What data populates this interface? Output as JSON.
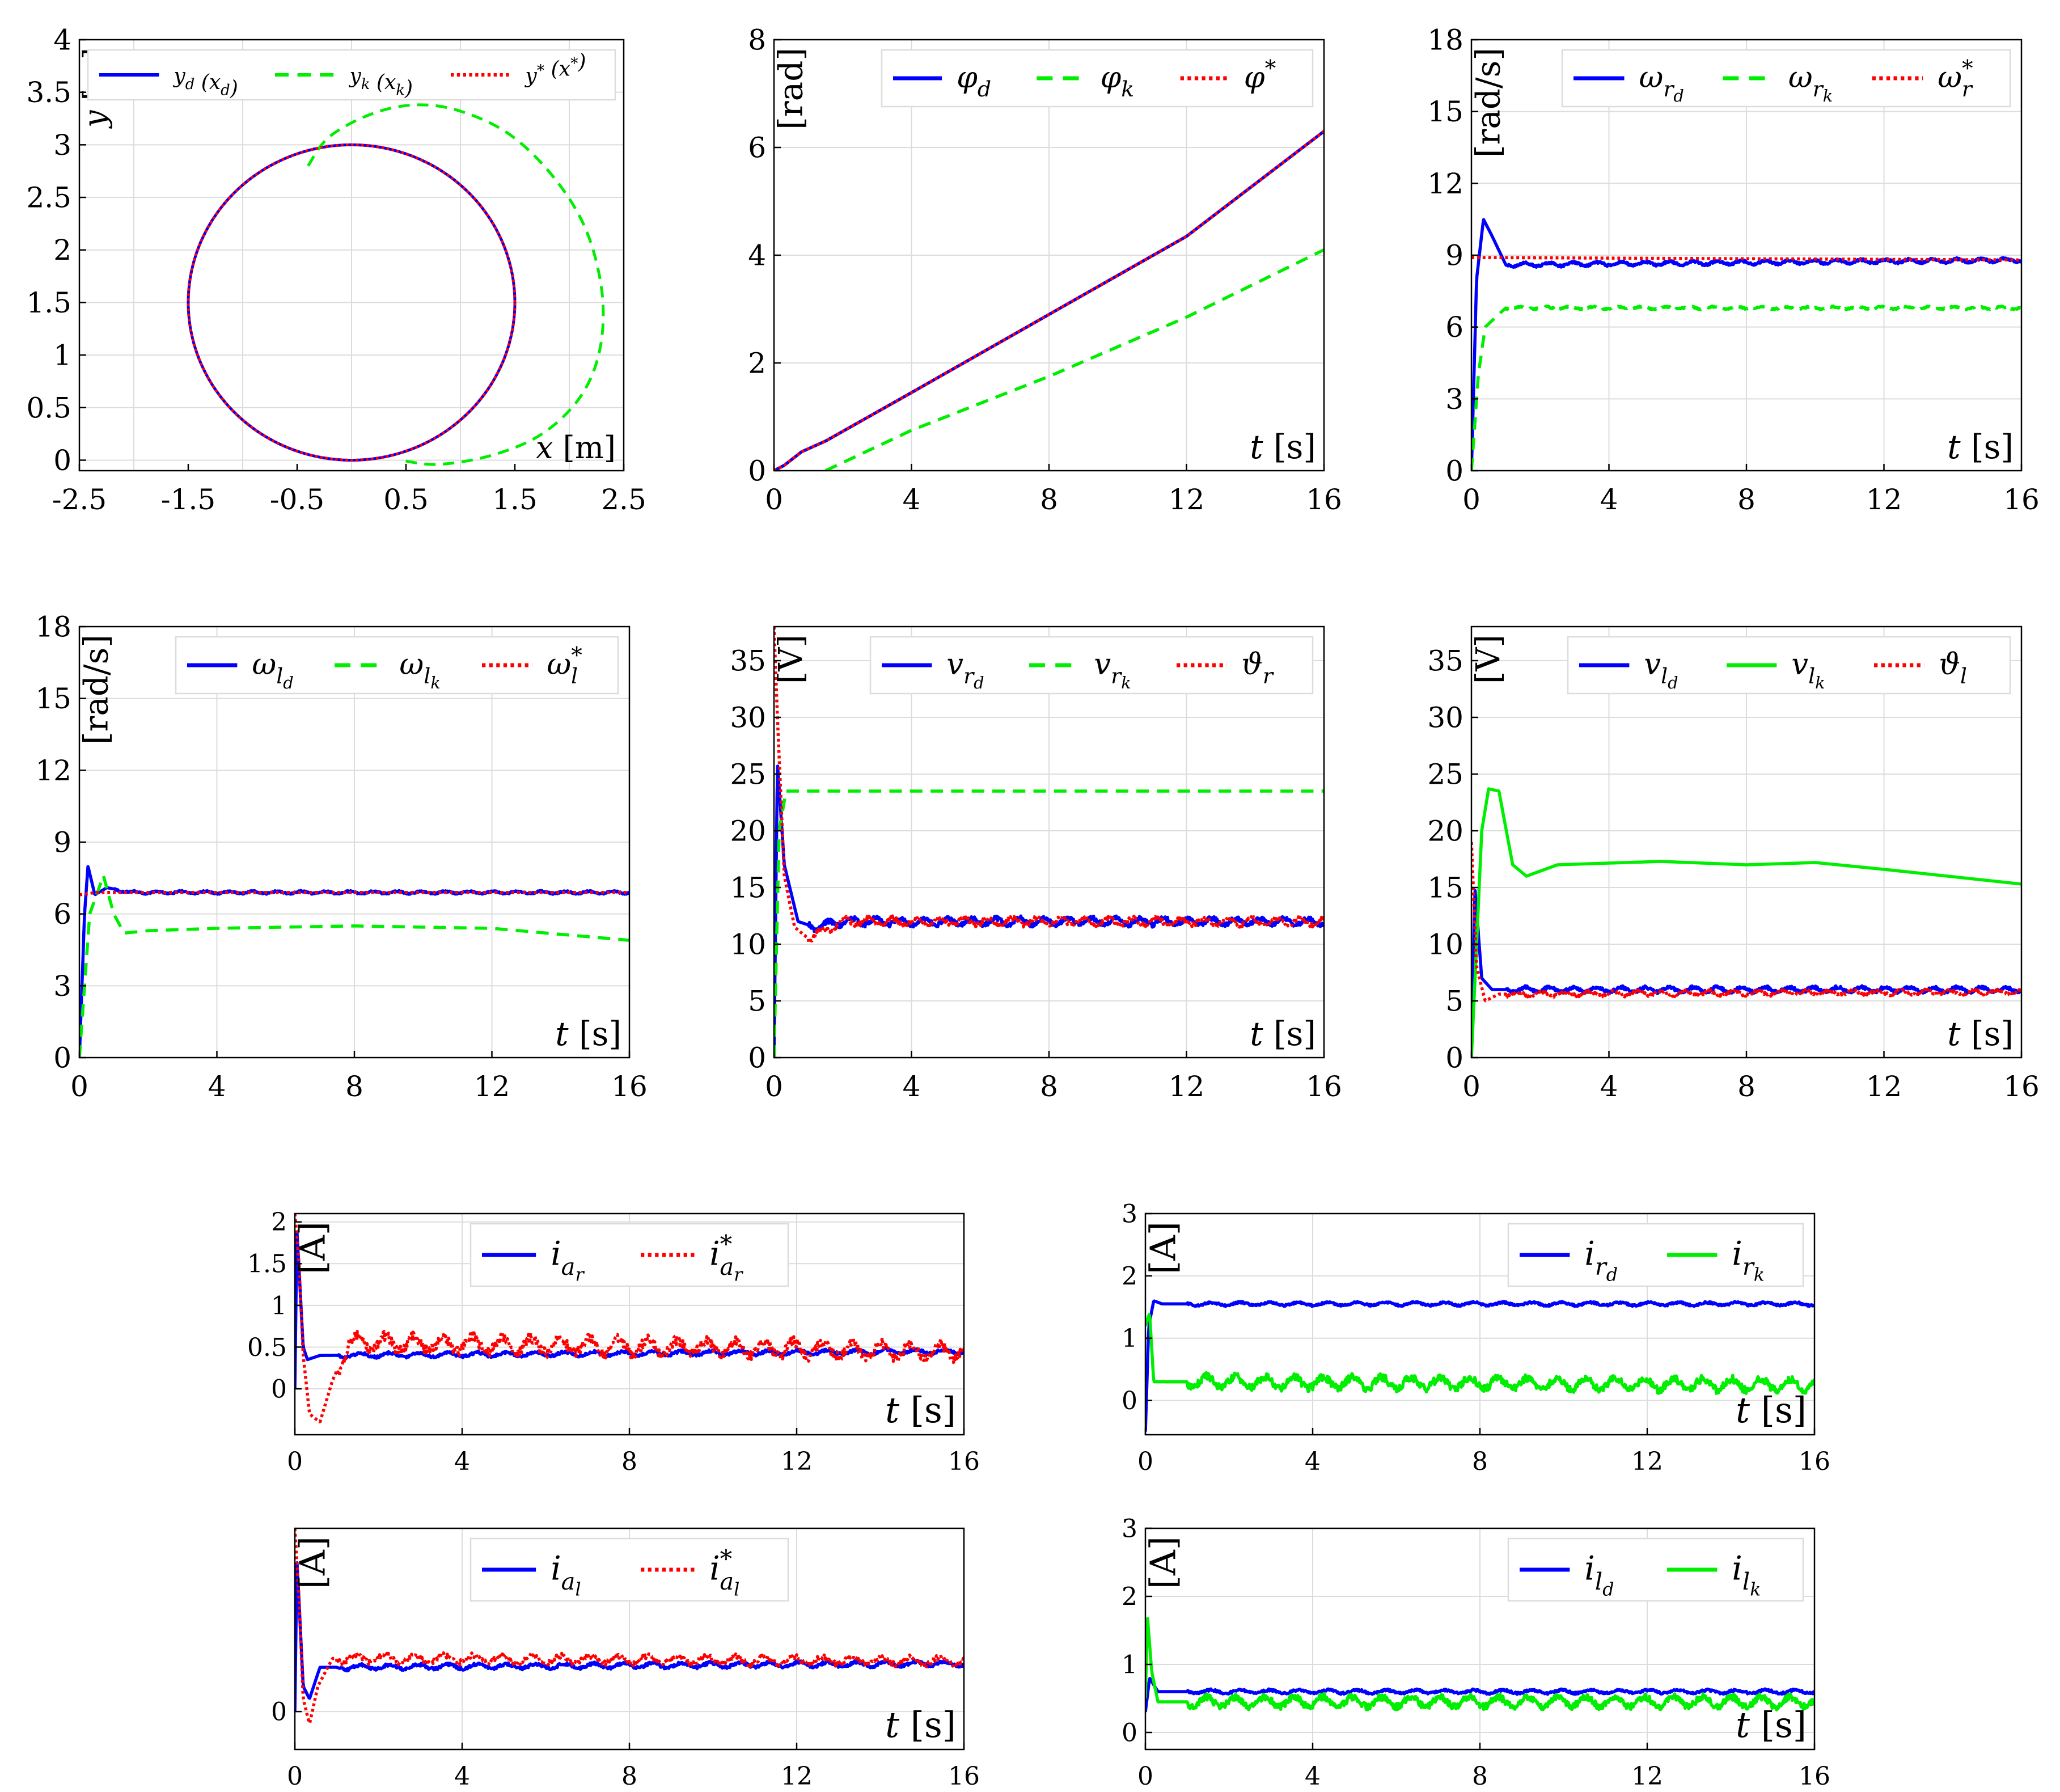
{
  "colors": {
    "blue": "#0000ff",
    "green": "#00ee00",
    "red": "#ff0000",
    "grid": "#dcdcdc",
    "axis": "#000000"
  },
  "chart_data": [
    {
      "id": "xy",
      "type": "line",
      "title": "",
      "xlabel": "x [m]",
      "ylabel": "y [m]",
      "xlim": [
        -2.5,
        2.5
      ],
      "ylim": [
        -0.1,
        4
      ],
      "xticks": [
        -2.5,
        -1.5,
        -0.5,
        0.5,
        1.5,
        2.5
      ],
      "yticks": [
        0,
        0.5,
        1,
        1.5,
        2,
        2.5,
        3,
        3.5,
        4
      ],
      "xgrid": [
        -2,
        -1,
        0,
        1,
        2
      ],
      "ygrid": [
        0,
        0.5,
        1,
        1.5,
        2,
        2.5,
        3,
        3.5,
        4
      ],
      "legend_position": "top",
      "series": [
        {
          "name": "y_d (x_d)",
          "style": "solid",
          "color": "blue",
          "curve": "circle",
          "cx": 0,
          "cy": 1.5,
          "r": 1.5
        },
        {
          "name": "y_k (x_k)",
          "style": "dashed",
          "color": "green",
          "points": [
            [
              -0.4,
              2.8
            ],
            [
              -0.2,
              3.08
            ],
            [
              0.2,
              3.3
            ],
            [
              0.6,
              3.38
            ],
            [
              1.0,
              3.32
            ],
            [
              1.45,
              3.1
            ],
            [
              1.85,
              2.7
            ],
            [
              2.15,
              2.2
            ],
            [
              2.3,
              1.6
            ],
            [
              2.28,
              1.05
            ],
            [
              2.1,
              0.6
            ],
            [
              1.75,
              0.25
            ],
            [
              1.3,
              0.05
            ],
            [
              0.8,
              -0.04
            ],
            [
              0.45,
              0.0
            ]
          ]
        },
        {
          "name": "y* (x*)",
          "style": "dotted",
          "color": "red",
          "curve": "circle",
          "cx": 0,
          "cy": 1.5,
          "r": 1.5
        }
      ]
    },
    {
      "id": "phi",
      "type": "line",
      "xlabel": "t [s]",
      "ylabel": "[rad]",
      "xlim": [
        0,
        16
      ],
      "ylim": [
        0,
        8
      ],
      "xticks": [
        0,
        4,
        8,
        12,
        16
      ],
      "yticks": [
        0,
        2,
        4,
        6,
        8
      ],
      "legend_position": "top-right",
      "series": [
        {
          "name": "φ_d",
          "style": "solid",
          "color": "blue",
          "points": [
            [
              0,
              0
            ],
            [
              0.3,
              0.1
            ],
            [
              0.8,
              0.35
            ],
            [
              1.5,
              0.55
            ],
            [
              4,
              1.45
            ],
            [
              8,
              2.9
            ],
            [
              12,
              4.35
            ],
            [
              16,
              6.3
            ]
          ]
        },
        {
          "name": "φ_k",
          "style": "dashed",
          "color": "green",
          "points": [
            [
              1.5,
              0
            ],
            [
              4,
              0.75
            ],
            [
              8,
              1.75
            ],
            [
              12,
              2.85
            ],
            [
              16,
              4.1
            ]
          ]
        },
        {
          "name": "φ*",
          "style": "dotted",
          "color": "red",
          "points": [
            [
              0,
              0
            ],
            [
              0.3,
              0.1
            ],
            [
              0.8,
              0.35
            ],
            [
              1.5,
              0.55
            ],
            [
              4,
              1.45
            ],
            [
              8,
              2.9
            ],
            [
              12,
              4.35
            ],
            [
              16,
              6.3
            ]
          ]
        }
      ]
    },
    {
      "id": "wr",
      "type": "line",
      "xlabel": "t [s]",
      "ylabel": "[rad/s]",
      "xlim": [
        0,
        16
      ],
      "ylim": [
        0,
        18
      ],
      "xticks": [
        0,
        4,
        8,
        12,
        16
      ],
      "yticks": [
        0,
        3,
        6,
        9,
        12,
        15,
        18
      ],
      "legend_position": "top-right",
      "series": [
        {
          "name": "ω_{r_d}",
          "style": "solid",
          "color": "blue",
          "points": [
            [
              0,
              0
            ],
            [
              0.15,
              8
            ],
            [
              0.35,
              10.5
            ],
            [
              0.6,
              9.8
            ],
            [
              1.0,
              8.6
            ],
            [
              16,
              8.8
            ]
          ],
          "ripple": 0.12
        },
        {
          "name": "ω_{r_k}",
          "style": "dashed",
          "color": "green",
          "points": [
            [
              0,
              0
            ],
            [
              0.2,
              4
            ],
            [
              0.4,
              6
            ],
            [
              1.0,
              6.8
            ],
            [
              16,
              6.8
            ]
          ],
          "ripple": 0.08
        },
        {
          "name": "ω*_r",
          "style": "dotted",
          "color": "red",
          "points": [
            [
              0,
              8.9
            ],
            [
              0.5,
              8.9
            ],
            [
              16,
              8.8
            ]
          ]
        }
      ]
    },
    {
      "id": "wl",
      "type": "line",
      "xlabel": "t [s]",
      "ylabel": "[rad/s]",
      "xlim": [
        0,
        16
      ],
      "ylim": [
        0,
        18
      ],
      "xticks": [
        0,
        4,
        8,
        12,
        16
      ],
      "yticks": [
        0,
        3,
        6,
        9,
        12,
        15,
        18
      ],
      "legend_position": "top-right",
      "series": [
        {
          "name": "ω_{l_d}",
          "style": "solid",
          "color": "blue",
          "points": [
            [
              0,
              0
            ],
            [
              0.15,
              6
            ],
            [
              0.25,
              8
            ],
            [
              0.45,
              6.8
            ],
            [
              0.8,
              7.1
            ],
            [
              1.5,
              6.9
            ],
            [
              16,
              6.9
            ]
          ],
          "ripple": 0.08
        },
        {
          "name": "ω_{l_k}",
          "style": "dashed",
          "color": "green",
          "points": [
            [
              0,
              0
            ],
            [
              0.3,
              6
            ],
            [
              0.7,
              7.6
            ],
            [
              1.0,
              6
            ],
            [
              1.3,
              5.2
            ],
            [
              2,
              5.3
            ],
            [
              4,
              5.4
            ],
            [
              8,
              5.5
            ],
            [
              12,
              5.4
            ],
            [
              16,
              4.9
            ]
          ]
        },
        {
          "name": "ω*_l",
          "style": "dotted",
          "color": "red",
          "points": [
            [
              0,
              6.8
            ],
            [
              0.5,
              6.9
            ],
            [
              16,
              6.9
            ]
          ]
        }
      ]
    },
    {
      "id": "vr",
      "type": "line",
      "xlabel": "t [s]",
      "ylabel": "[V]",
      "xlim": [
        0,
        16
      ],
      "ylim": [
        0,
        38
      ],
      "xticks": [
        0,
        4,
        8,
        12,
        16
      ],
      "yticks": [
        0,
        5,
        10,
        15,
        20,
        25,
        30,
        35
      ],
      "legend_position": "top-right",
      "series": [
        {
          "name": "v_{r_d}",
          "style": "solid",
          "color": "blue",
          "points": [
            [
              0,
              0
            ],
            [
              0.1,
              26
            ],
            [
              0.3,
              17
            ],
            [
              0.7,
              12
            ],
            [
              1.2,
              11.5
            ],
            [
              2,
              12
            ],
            [
              16,
              12
            ]
          ],
          "ripple": 0.5
        },
        {
          "name": "v_{r_k}",
          "style": "dashed",
          "color": "green",
          "points": [
            [
              0,
              0
            ],
            [
              0.15,
              20
            ],
            [
              0.35,
              23.5
            ],
            [
              16,
              23.5
            ]
          ]
        },
        {
          "name": "ϑ_r",
          "style": "dotted",
          "color": "red",
          "points": [
            [
              0,
              38
            ],
            [
              0.1,
              30
            ],
            [
              0.3,
              16
            ],
            [
              0.6,
              11.5
            ],
            [
              1.0,
              10.5
            ],
            [
              2,
              12
            ],
            [
              16,
              12
            ]
          ],
          "ripple": 0.5
        }
      ]
    },
    {
      "id": "vl",
      "type": "line",
      "xlabel": "t [s]",
      "ylabel": "[V]",
      "xlim": [
        0,
        16
      ],
      "ylim": [
        0,
        38
      ],
      "xticks": [
        0,
        4,
        8,
        12,
        16
      ],
      "yticks": [
        0,
        5,
        10,
        15,
        20,
        25,
        30,
        35
      ],
      "legend_position": "top-right",
      "series": [
        {
          "name": "v_{l_d}",
          "style": "solid",
          "color": "blue",
          "points": [
            [
              0,
              0
            ],
            [
              0.1,
              15
            ],
            [
              0.3,
              7
            ],
            [
              0.6,
              6
            ],
            [
              16,
              6
            ]
          ],
          "ripple": 0.35
        },
        {
          "name": "v_{l_k}",
          "style": "solid",
          "color": "green",
          "points": [
            [
              0,
              0
            ],
            [
              0.3,
              20
            ],
            [
              0.5,
              23.7
            ],
            [
              0.8,
              23.5
            ],
            [
              1.2,
              17
            ],
            [
              1.6,
              16
            ],
            [
              2.5,
              17
            ],
            [
              5.5,
              17.3
            ],
            [
              8,
              17
            ],
            [
              10,
              17.2
            ],
            [
              12,
              16.6
            ],
            [
              16,
              15.3
            ]
          ]
        },
        {
          "name": "ϑ_l",
          "style": "dotted",
          "color": "red",
          "points": [
            [
              0,
              19
            ],
            [
              0.15,
              8
            ],
            [
              0.4,
              5
            ],
            [
              0.8,
              5.6
            ],
            [
              16,
              5.8
            ]
          ],
          "ripple": 0.3
        }
      ]
    },
    {
      "id": "iar",
      "type": "line",
      "xlabel": "t [s]",
      "ylabel": "[A]",
      "xlim": [
        0,
        16
      ],
      "ylim": [
        -0.55,
        2.1
      ],
      "xticks": [
        0,
        4,
        8,
        12,
        16
      ],
      "yticks": [
        0,
        0.5,
        1,
        1.5,
        2
      ],
      "legend_position": "top",
      "series": [
        {
          "name": "i_{a_r}",
          "style": "solid",
          "color": "blue",
          "points": [
            [
              0,
              0
            ],
            [
              0.05,
              1.9
            ],
            [
              0.2,
              0.5
            ],
            [
              0.3,
              0.35
            ],
            [
              0.6,
              0.4
            ],
            [
              16,
              0.45
            ]
          ],
          "ripple": 0.04
        },
        {
          "name": "i*_{a_r}",
          "style": "dotted",
          "color": "red",
          "points": [
            [
              0,
              2.1
            ],
            [
              0.1,
              1.5
            ],
            [
              0.2,
              0.4
            ],
            [
              0.35,
              -0.3
            ],
            [
              0.6,
              -0.4
            ],
            [
              0.9,
              0.1
            ],
            [
              1.3,
              0.55
            ],
            [
              16,
              0.45
            ]
          ],
          "ripple": 0.15
        }
      ]
    },
    {
      "id": "ir",
      "type": "line",
      "xlabel": "t [s]",
      "ylabel": "[A]",
      "xlim": [
        0,
        16
      ],
      "ylim": [
        -0.55,
        3
      ],
      "xticks": [
        0,
        4,
        8,
        12,
        16
      ],
      "yticks": [
        0,
        1,
        2,
        3
      ],
      "legend_position": "top-right",
      "series": [
        {
          "name": "i_{r_d}",
          "style": "solid",
          "color": "blue",
          "points": [
            [
              0,
              -0.5
            ],
            [
              0.08,
              1.2
            ],
            [
              0.2,
              1.6
            ],
            [
              0.4,
              1.55
            ],
            [
              16,
              1.55
            ]
          ],
          "ripple": 0.04
        },
        {
          "name": "i_{r_k}",
          "style": "solid",
          "color": "green",
          "points": [
            [
              0,
              1.2
            ],
            [
              0.1,
              1.4
            ],
            [
              0.2,
              0.3
            ],
            [
              0.4,
              0.3
            ],
            [
              16,
              0.25
            ]
          ],
          "ripple": 0.15
        }
      ]
    },
    {
      "id": "ial",
      "type": "line",
      "xlabel": "t [s]",
      "ylabel": "[A]",
      "xlim": [
        0,
        16
      ],
      "ylim": [
        -0.3,
        1.45
      ],
      "xticks": [
        0,
        4,
        8,
        12,
        16
      ],
      "yticks": [
        0
      ],
      "legend_position": "top",
      "series": [
        {
          "name": "i_{a_l}",
          "style": "solid",
          "color": "blue",
          "points": [
            [
              0,
              0
            ],
            [
              0.05,
              1.2
            ],
            [
              0.2,
              0.2
            ],
            [
              0.35,
              0.1
            ],
            [
              0.6,
              0.35
            ],
            [
              16,
              0.38
            ]
          ],
          "ripple": 0.03
        },
        {
          "name": "i*_{a_l}",
          "style": "dotted",
          "color": "red",
          "points": [
            [
              0,
              1.45
            ],
            [
              0.1,
              0.9
            ],
            [
              0.2,
              0.1
            ],
            [
              0.35,
              -0.1
            ],
            [
              0.55,
              0.2
            ],
            [
              0.9,
              0.42
            ],
            [
              16,
              0.4
            ]
          ],
          "ripple": 0.05
        }
      ]
    },
    {
      "id": "il",
      "type": "line",
      "xlabel": "t [s]",
      "ylabel": "[A]",
      "xlim": [
        0,
        16
      ],
      "ylim": [
        -0.25,
        3
      ],
      "xticks": [
        0,
        4,
        8,
        12,
        16
      ],
      "yticks": [
        0,
        1,
        2,
        3
      ],
      "legend_position": "top-right",
      "series": [
        {
          "name": "i_{l_d}",
          "style": "solid",
          "color": "blue",
          "points": [
            [
              0,
              0.3
            ],
            [
              0.1,
              0.8
            ],
            [
              0.3,
              0.6
            ],
            [
              16,
              0.6
            ]
          ],
          "ripple": 0.04
        },
        {
          "name": "i_{l_k}",
          "style": "solid",
          "color": "green",
          "points": [
            [
              0,
              0.5
            ],
            [
              0.05,
              1.7
            ],
            [
              0.15,
              0.9
            ],
            [
              0.3,
              0.45
            ],
            [
              16,
              0.45
            ]
          ],
          "ripple": 0.12
        }
      ]
    }
  ]
}
